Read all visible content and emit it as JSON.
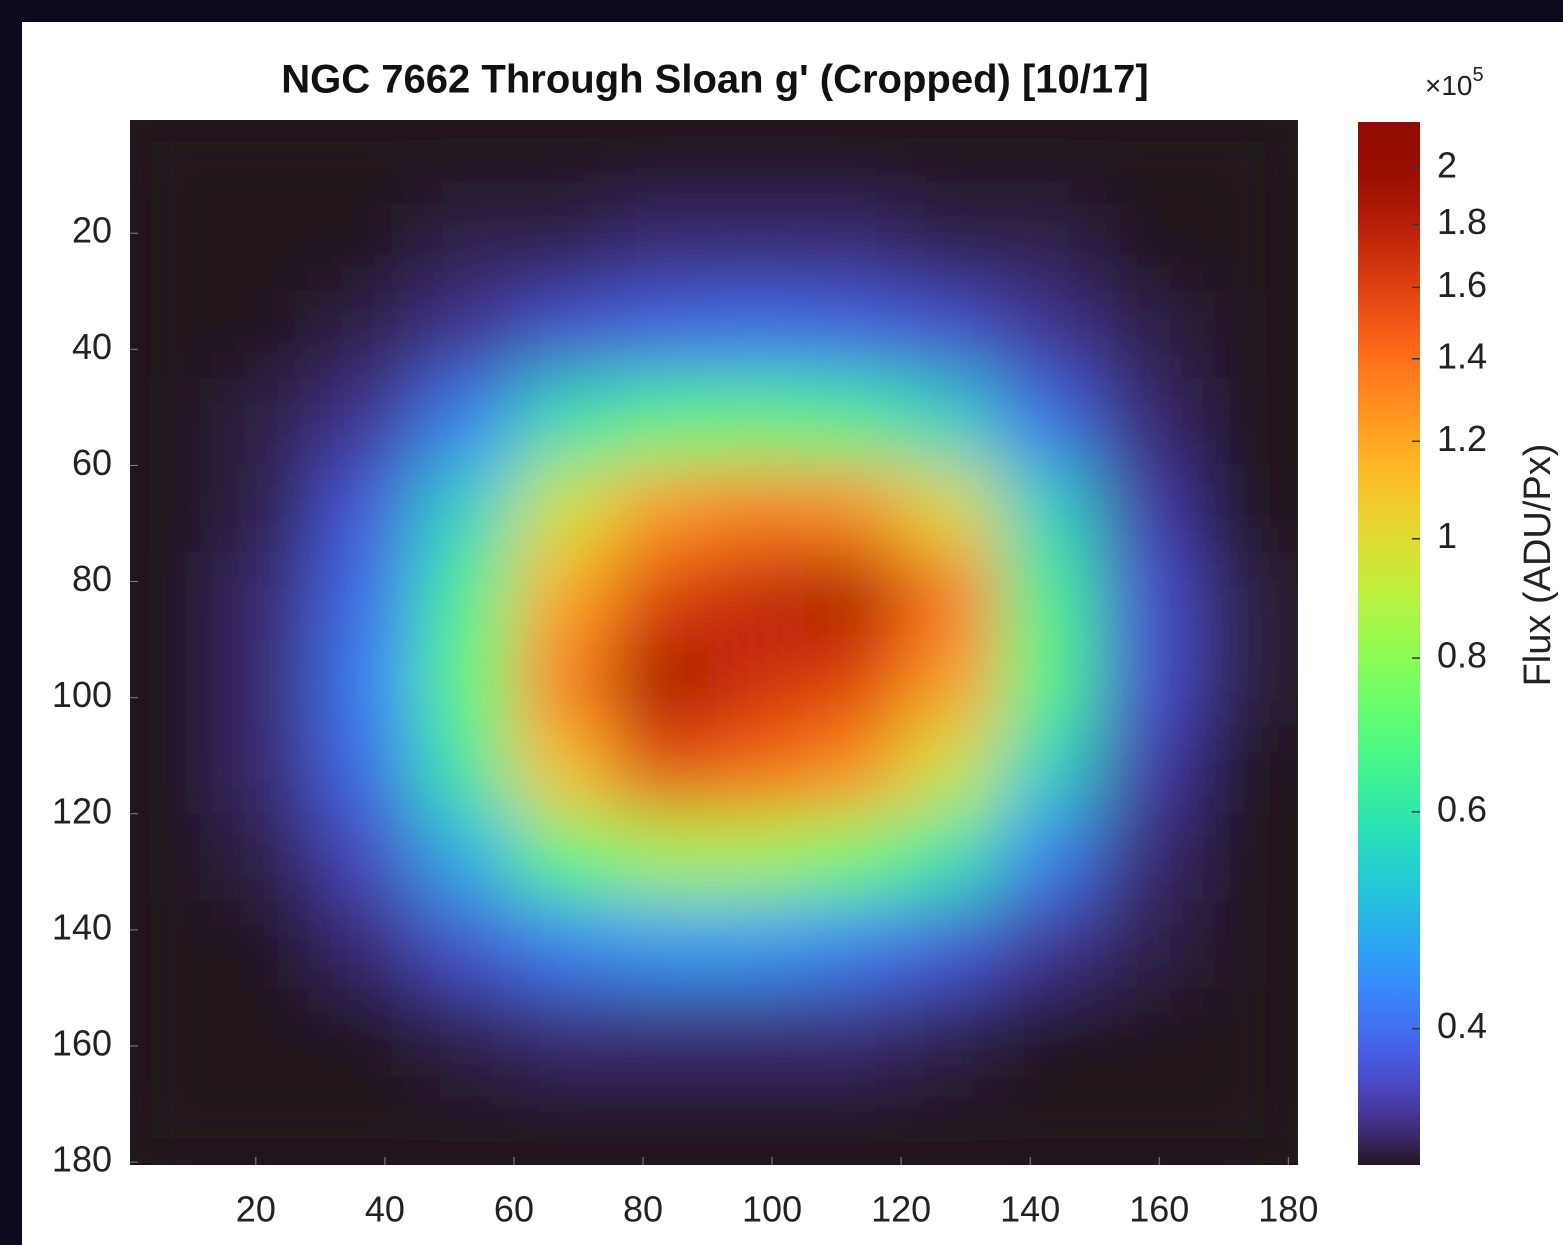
{
  "chart_data": {
    "type": "heatmap",
    "title": "NGC 7662 Through Sloan g' (Cropped) [10/17]",
    "x": [
      7.5,
      22.5,
      37.5,
      52.5,
      67.5,
      82.5,
      97.5,
      112.5,
      127.5,
      142.5,
      157.5,
      172.5
    ],
    "y": [
      7.5,
      22.5,
      37.5,
      52.5,
      67.5,
      82.5,
      97.5,
      112.5,
      127.5,
      142.5,
      157.5,
      172.5
    ],
    "z": [
      [
        0.31,
        0.31,
        0.31,
        0.31,
        0.31,
        0.31,
        0.31,
        0.31,
        0.31,
        0.31,
        0.31,
        0.31
      ],
      [
        0.31,
        0.31,
        0.31,
        0.32,
        0.32,
        0.33,
        0.33,
        0.33,
        0.32,
        0.32,
        0.31,
        0.31
      ],
      [
        0.31,
        0.31,
        0.32,
        0.34,
        0.37,
        0.39,
        0.4,
        0.39,
        0.37,
        0.34,
        0.32,
        0.31
      ],
      [
        0.31,
        0.32,
        0.34,
        0.42,
        0.58,
        0.68,
        0.7,
        0.66,
        0.55,
        0.4,
        0.33,
        0.31
      ],
      [
        0.31,
        0.32,
        0.38,
        0.55,
        0.95,
        1.25,
        1.35,
        1.3,
        1.0,
        0.55,
        0.35,
        0.31
      ],
      [
        0.31,
        0.33,
        0.4,
        0.65,
        1.2,
        1.6,
        1.75,
        1.9,
        1.4,
        0.65,
        0.37,
        0.32
      ],
      [
        0.31,
        0.33,
        0.42,
        0.7,
        1.35,
        1.95,
        1.7,
        1.6,
        1.25,
        0.68,
        0.37,
        0.32
      ],
      [
        0.31,
        0.33,
        0.4,
        0.62,
        1.1,
        1.55,
        1.45,
        1.3,
        0.95,
        0.55,
        0.35,
        0.31
      ],
      [
        0.31,
        0.32,
        0.36,
        0.48,
        0.7,
        0.85,
        0.85,
        0.75,
        0.6,
        0.42,
        0.33,
        0.31
      ],
      [
        0.31,
        0.31,
        0.33,
        0.37,
        0.42,
        0.45,
        0.45,
        0.42,
        0.38,
        0.34,
        0.32,
        0.31
      ],
      [
        0.31,
        0.31,
        0.31,
        0.32,
        0.33,
        0.33,
        0.33,
        0.33,
        0.32,
        0.31,
        0.31,
        0.31
      ],
      [
        0.31,
        0.31,
        0.31,
        0.31,
        0.31,
        0.31,
        0.31,
        0.31,
        0.31,
        0.31,
        0.31,
        0.31
      ]
    ],
    "xlim": [
      0.5,
      181.5
    ],
    "ylim": [
      0.5,
      180.5
    ],
    "y_reversed": true,
    "xticks": [
      20,
      40,
      60,
      80,
      100,
      120,
      140,
      160,
      180
    ],
    "yticks": [
      20,
      40,
      60,
      80,
      100,
      120,
      140,
      160,
      180
    ],
    "colorbar": {
      "label": "Flux (ADU/Px)",
      "multiplier": {
        "base": "×10",
        "exponent": "5"
      },
      "colormap": "turbo",
      "scale": "log",
      "clim": [
        0.31,
        2.18
      ],
      "ticks": [
        0.4,
        0.6,
        0.8,
        1,
        1.2,
        1.4,
        1.6,
        1.8,
        2
      ]
    }
  }
}
